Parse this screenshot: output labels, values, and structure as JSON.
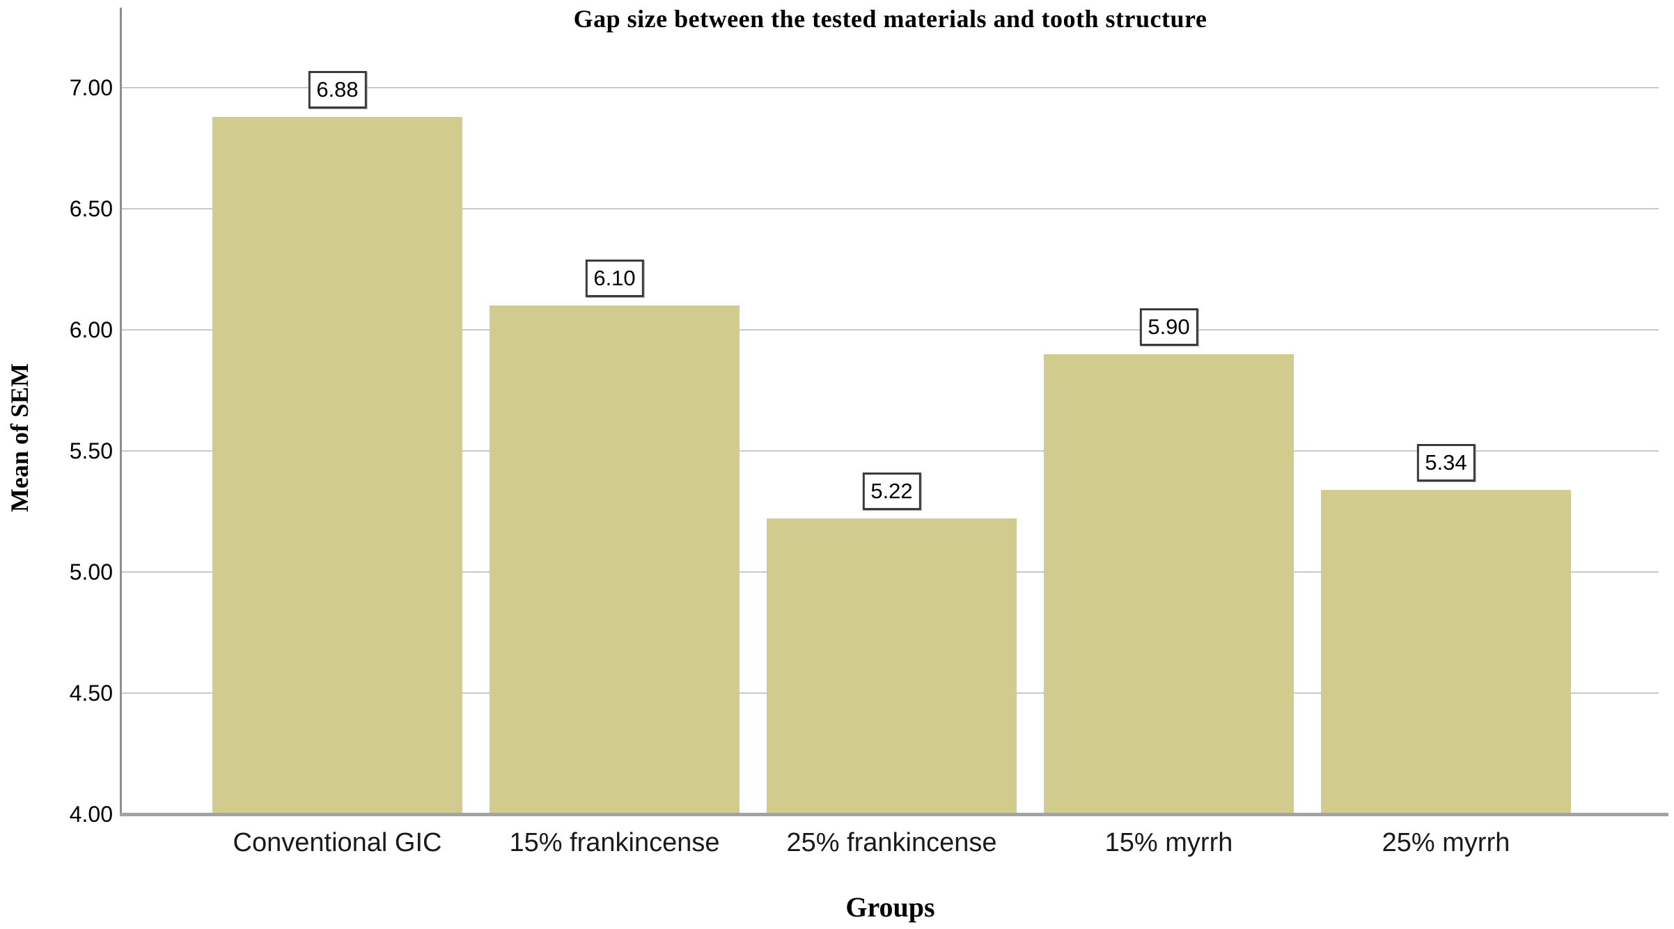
{
  "chart_data": {
    "type": "bar",
    "title": "Gap size between the tested materials and tooth structure",
    "xlabel": "Groups",
    "ylabel": "Mean of SEM",
    "categories": [
      "Conventional GIC",
      "15% frankincense",
      "25% frankincense",
      "15% myrrh",
      "25% myrrh"
    ],
    "values": [
      6.88,
      6.1,
      5.22,
      5.9,
      5.34
    ],
    "value_labels": [
      "6.88",
      "6.10",
      "5.22",
      "5.90",
      "5.34"
    ],
    "yticks": [
      7.0,
      6.5,
      6.0,
      5.5,
      5.0,
      4.5,
      4.0
    ],
    "ytick_labels": [
      "7.00",
      "6.50",
      "6.00",
      "5.50",
      "5.00",
      "4.50",
      "4.00"
    ],
    "ylim": [
      4.0,
      7.33
    ],
    "grid": true,
    "legend": false,
    "colors": {
      "bar_fill": "#d2cb8e",
      "gridline": "#c9c9c9",
      "y_axis_line": "#8e8e8e",
      "x_axis_line": "#a3a3a3",
      "value_box_border": "#3b3b3b",
      "text": "#000000",
      "background": "#ffffff"
    }
  }
}
